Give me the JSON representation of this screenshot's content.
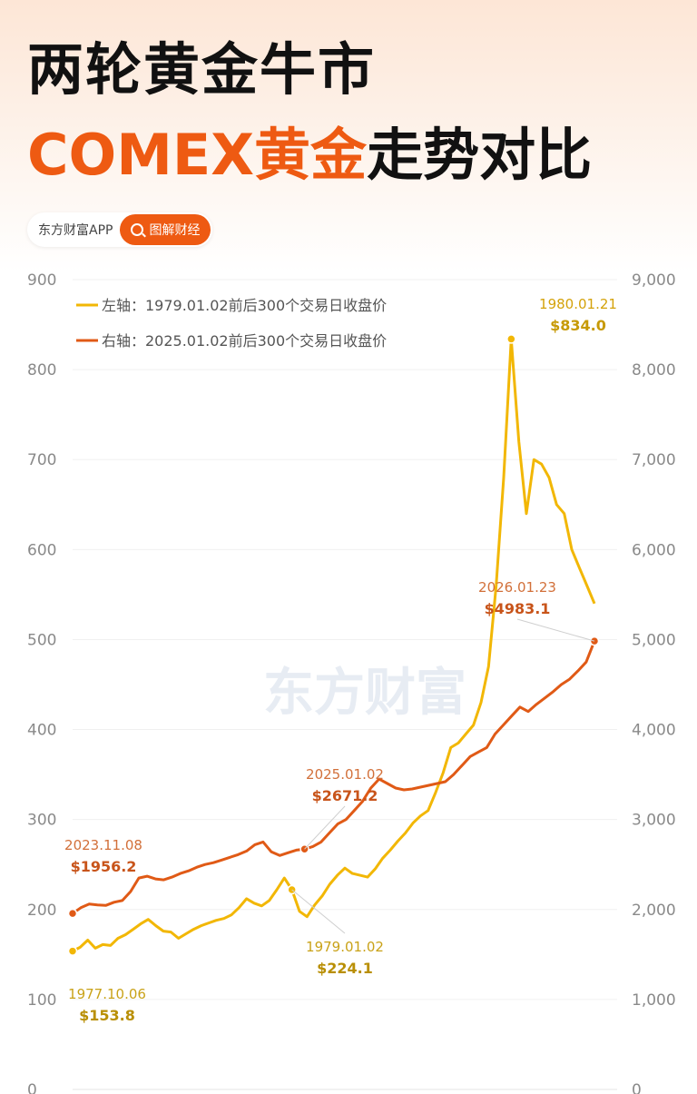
{
  "header": {
    "title_line1": "两轮黄金牛市",
    "title_line2_accent": "COMEX黄金",
    "title_line2_rest": "走势对比",
    "brand_name": "东方财富APP",
    "brand_tag": "图解财经",
    "watermark": "东方财富"
  },
  "colors": {
    "left_series": "#f2b705",
    "right_series": "#e05a16",
    "accent": "#ee5a12"
  },
  "chart_data": {
    "type": "line",
    "left_axis": {
      "ticks": [
        "0",
        "100",
        "200",
        "300",
        "400",
        "500",
        "600",
        "700",
        "800",
        "900"
      ],
      "range": [
        0,
        900
      ]
    },
    "right_axis": {
      "ticks": [
        "0",
        "1,000",
        "2,000",
        "3,000",
        "4,000",
        "5,000",
        "6,000",
        "7,000",
        "8,000",
        "9,000"
      ],
      "range": [
        0,
        9000
      ]
    },
    "legend_position": "top-left",
    "series": [
      {
        "name": "左轴：1979.01.02前后300个交易日收盘价",
        "axis": "left",
        "values": [
          153.8,
          158,
          166,
          157,
          161,
          160,
          168,
          172,
          178,
          184,
          189,
          182,
          176,
          175,
          168,
          173,
          178,
          182,
          185,
          188,
          190,
          194,
          202,
          212,
          207,
          204,
          210,
          222,
          235,
          222,
          198,
          192,
          205,
          215,
          228,
          238,
          246,
          240,
          238,
          236,
          245,
          257,
          266,
          276,
          285,
          296,
          304,
          310,
          330,
          352,
          380,
          385,
          395,
          405,
          430,
          470,
          560,
          680,
          834,
          720,
          640,
          700,
          695,
          680,
          650,
          640,
          600,
          580,
          560,
          540
        ]
      },
      {
        "name": "右轴：2025.01.02前后300个交易日收盘价",
        "axis": "right",
        "values": [
          1956.2,
          2020,
          2060,
          2050,
          2045,
          2080,
          2100,
          2200,
          2350,
          2370,
          2340,
          2330,
          2360,
          2400,
          2430,
          2470,
          2500,
          2520,
          2550,
          2580,
          2610,
          2650,
          2720,
          2750,
          2640,
          2600,
          2630,
          2660,
          2671.2,
          2700,
          2750,
          2850,
          2950,
          3000,
          3100,
          3200,
          3350,
          3450,
          3400,
          3350,
          3330,
          3340,
          3360,
          3380,
          3400,
          3420,
          3500,
          3600,
          3700,
          3750,
          3800,
          3950,
          4050,
          4150,
          4250,
          4200,
          4280,
          4350,
          4420,
          4500,
          4560,
          4650,
          4750,
          4983.1
        ]
      }
    ],
    "annotations": [
      {
        "date": "1980.01.21",
        "value": "$834.0",
        "series": 0
      },
      {
        "date": "2026.01.23",
        "value": "$4983.1",
        "series": 1
      },
      {
        "date": "2025.01.02",
        "value": "$2671.2",
        "series": 1
      },
      {
        "date": "2023.11.08",
        "value": "$1956.2",
        "series": 1
      },
      {
        "date": "1979.01.02",
        "value": "$224.1",
        "series": 0
      },
      {
        "date": "1977.10.06",
        "value": "$153.8",
        "series": 0
      }
    ]
  }
}
